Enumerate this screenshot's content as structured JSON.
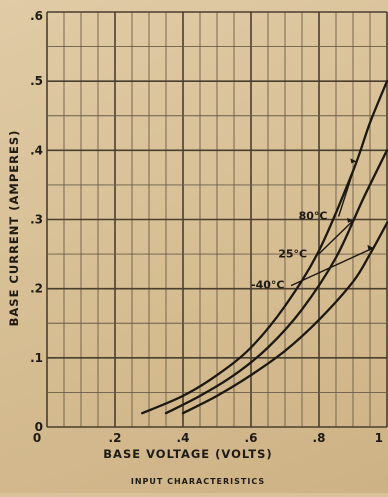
{
  "chart_data": {
    "type": "line",
    "title": "",
    "caption": "INPUT CHARACTERISTICS",
    "xlabel": "BASE VOLTAGE (VOLTS)",
    "ylabel": "BASE CURRENT (AMPERES)",
    "xlim": [
      0,
      1.0
    ],
    "ylim": [
      0,
      0.6
    ],
    "x_ticks": [
      "0",
      ".2",
      ".4",
      ".6",
      ".8",
      "1"
    ],
    "y_ticks": [
      "0",
      ".1",
      ".2",
      ".3",
      ".4",
      ".5",
      ".6"
    ],
    "grid": true,
    "series": [
      {
        "name": "80°C",
        "points": [
          [
            0.28,
            0.02
          ],
          [
            0.4,
            0.045
          ],
          [
            0.5,
            0.075
          ],
          [
            0.6,
            0.115
          ],
          [
            0.7,
            0.175
          ],
          [
            0.8,
            0.255
          ],
          [
            0.9,
            0.37
          ],
          [
            0.95,
            0.44
          ],
          [
            1.0,
            0.5
          ]
        ]
      },
      {
        "name": "25°C",
        "points": [
          [
            0.35,
            0.02
          ],
          [
            0.45,
            0.045
          ],
          [
            0.55,
            0.075
          ],
          [
            0.65,
            0.115
          ],
          [
            0.75,
            0.17
          ],
          [
            0.85,
            0.245
          ],
          [
            0.93,
            0.33
          ],
          [
            1.0,
            0.4
          ]
        ]
      },
      {
        "name": "-40°C",
        "points": [
          [
            0.4,
            0.02
          ],
          [
            0.5,
            0.045
          ],
          [
            0.6,
            0.075
          ],
          [
            0.7,
            0.11
          ],
          [
            0.8,
            0.155
          ],
          [
            0.9,
            0.21
          ],
          [
            0.95,
            0.25
          ],
          [
            1.0,
            0.295
          ]
        ]
      }
    ]
  }
}
